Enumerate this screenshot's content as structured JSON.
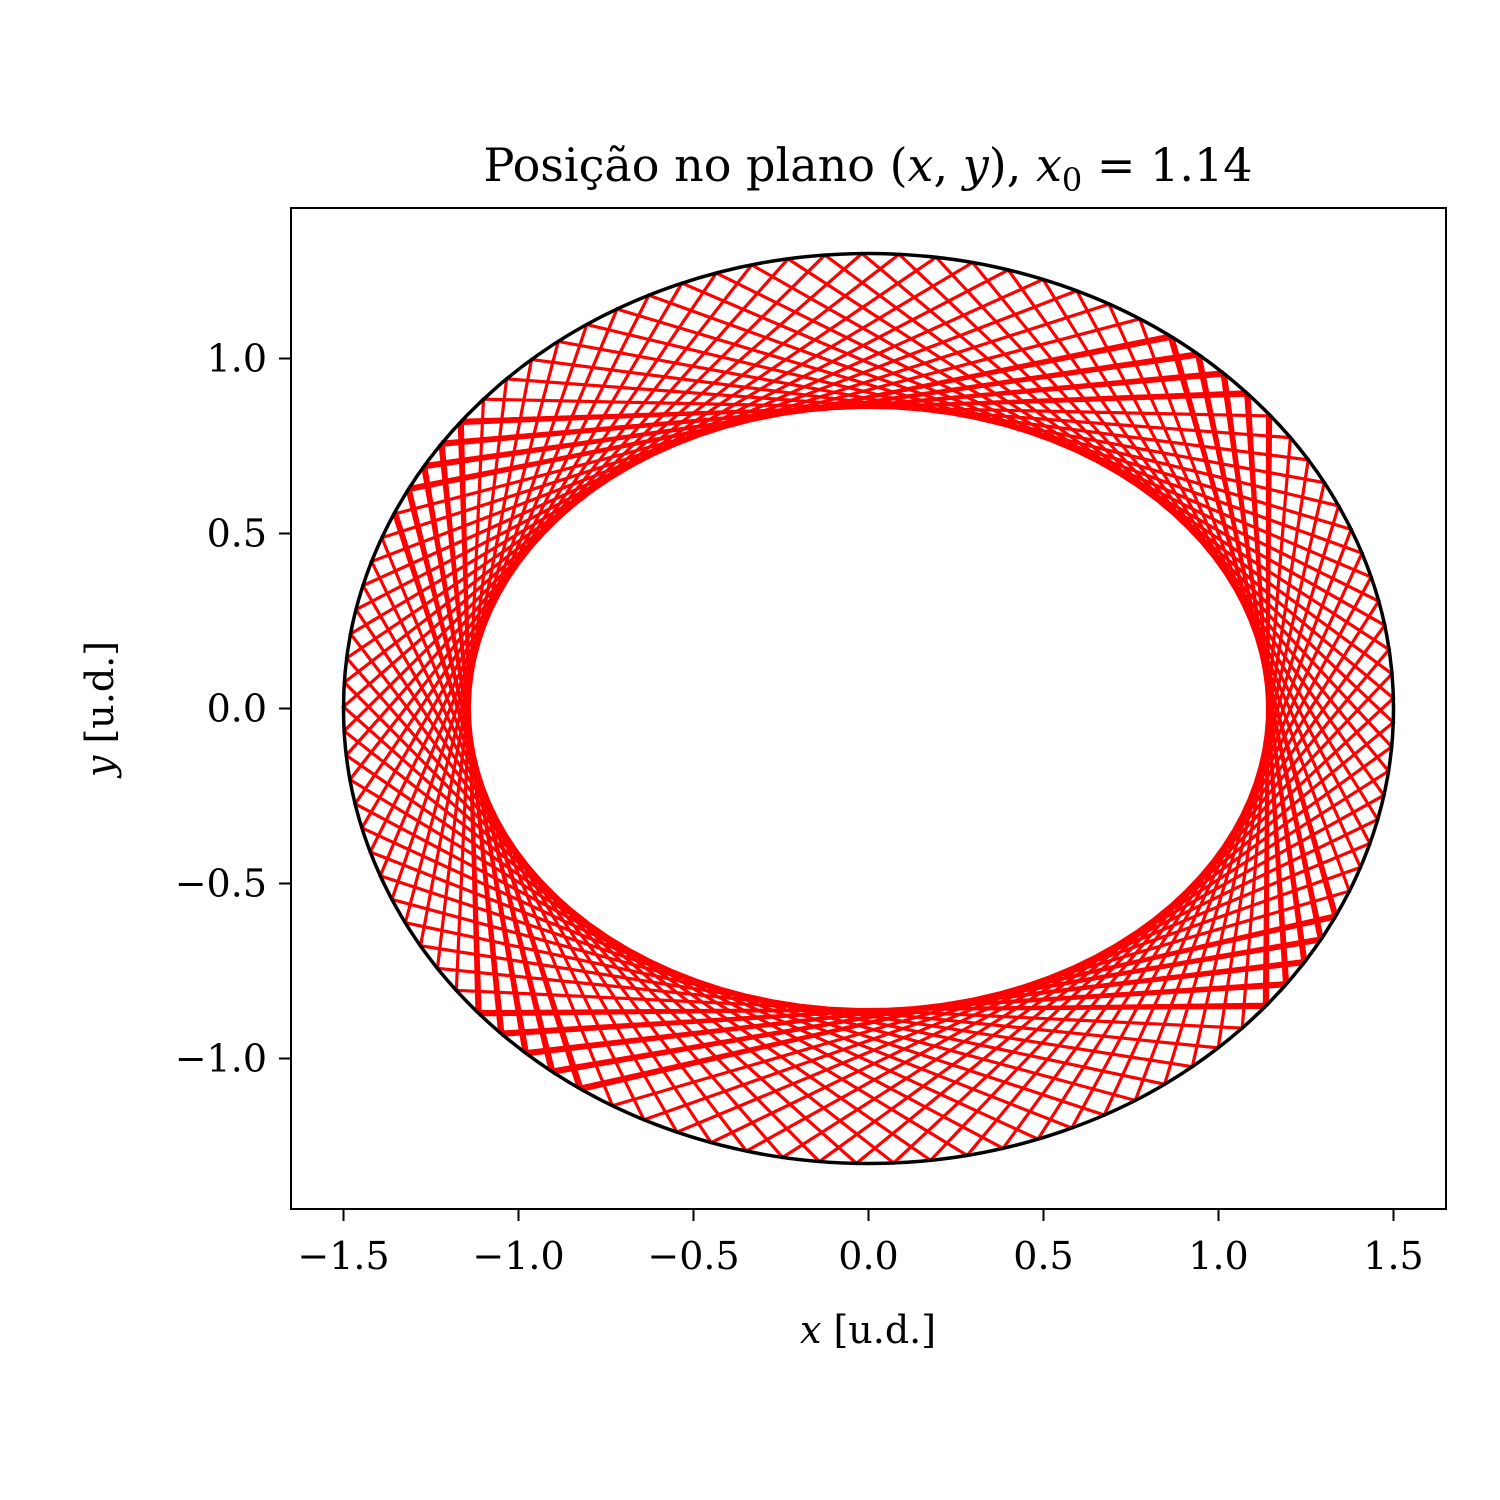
{
  "chart_data": {
    "type": "line",
    "title": {
      "prefix": "Posição no plano (",
      "var_x": "x",
      "comma": ", ",
      "var_y": "y",
      "suffix": "), ",
      "var_x0": "x",
      "sub0": "0",
      "equals": " = 1.14"
    },
    "xlabel": {
      "var": "x",
      "unit": " [u.d.]"
    },
    "ylabel": {
      "var": "y",
      "unit": " [u.d.]"
    },
    "xlim": [
      -1.65,
      1.65
    ],
    "ylim": [
      -1.43,
      1.43
    ],
    "xticks": [
      -1.5,
      -1.0,
      -0.5,
      0.0,
      0.5,
      1.0,
      1.5
    ],
    "xtick_labels": [
      "−1.5",
      "−1.0",
      "−0.5",
      "0.0",
      "0.5",
      "1.0",
      "1.5"
    ],
    "yticks": [
      -1.0,
      -0.5,
      0.0,
      0.5,
      1.0
    ],
    "ytick_labels": [
      "−1.0",
      "−0.5",
      "0.0",
      "0.5",
      "1.0"
    ],
    "grid": false,
    "series": [
      {
        "kind": "boundary-ellipse",
        "color": "#000000",
        "semi_axis_x": 1.5,
        "semi_axis_y": 1.3
      },
      {
        "kind": "billiard-trajectory",
        "color": "#ff0000",
        "x0": 1.14,
        "y0": 0.0,
        "caustic_semi_axis_x": 1.14,
        "caustic_semi_axis_y": 0.86,
        "bounces": 120
      }
    ]
  }
}
